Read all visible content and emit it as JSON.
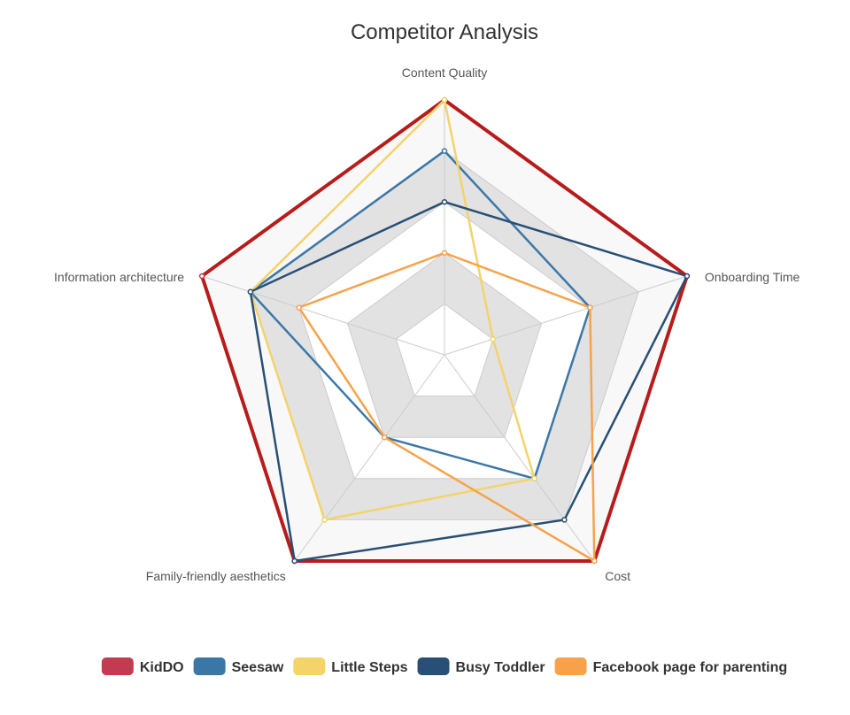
{
  "chart_data": {
    "type": "radar",
    "title": "Competitor Analysis",
    "indicators": [
      "Content Quality",
      "Onboarding Time",
      "Cost",
      "Family-friendly aesthetics",
      "Information architecture"
    ],
    "max": 5,
    "split_number": 5,
    "split_area_colors": [
      "#ffffff",
      "#e2e2e2",
      "#ffffff",
      "#e2e2e2",
      "#f8f8f8"
    ],
    "legend_position": "bottom",
    "series": [
      {
        "name": "KidDO",
        "color": "#c23b51",
        "line_color": "#b71c1c",
        "values": [
          5,
          5,
          5,
          5,
          5
        ],
        "width": 4
      },
      {
        "name": "Seesaw",
        "color": "#3b77a6",
        "values": [
          4,
          3,
          3,
          2,
          4
        ],
        "width": 2.5
      },
      {
        "name": "Little Steps",
        "color": "#f4d36b",
        "values": [
          5,
          1,
          3,
          4,
          4
        ],
        "width": 2.5
      },
      {
        "name": "Busy Toddler",
        "color": "#284f75",
        "values": [
          3,
          5,
          4,
          5,
          4
        ],
        "width": 2.5
      },
      {
        "name": "Facebook page for parenting",
        "color": "#f7a24a",
        "values": [
          2,
          3,
          5,
          2,
          3
        ],
        "width": 2.5
      }
    ]
  }
}
